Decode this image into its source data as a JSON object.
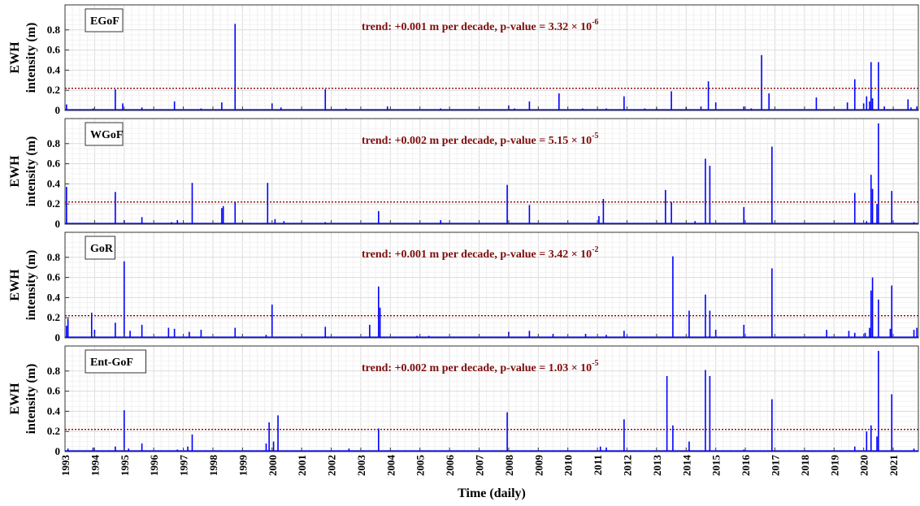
{
  "figure": {
    "xlabel": "Time (daily)",
    "ylabel_line1": "EWH",
    "ylabel_line2": "intensity (m)",
    "x_ticks": [
      "1993",
      "1994",
      "1995",
      "1996",
      "1997",
      "1998",
      "1999",
      "2000",
      "2001",
      "2002",
      "2003",
      "2004",
      "2005",
      "2006",
      "2007",
      "2008",
      "2009",
      "2010",
      "2011",
      "2012",
      "2013",
      "2014",
      "2015",
      "2016",
      "2017",
      "2018",
      "2019",
      "2020",
      "2021"
    ],
    "y_ticks": [
      "0",
      "0.2",
      "0.4",
      "0.6",
      "0.8"
    ]
  },
  "colors": {
    "series": "#0000ff",
    "threshold": "#8b0000",
    "trend_text": "#7f0c0c",
    "grid": "#e3e3e3"
  },
  "chart_data": [
    {
      "type": "line",
      "title": "EGoF",
      "trend_text": "trend: +0.001 m per decade, p-value = 3.32 × 10",
      "trend_exp": "-6",
      "xlim": [
        1993.0,
        2021.85
      ],
      "ylim": [
        0,
        1.0
      ],
      "threshold": 0.22,
      "spikes": [
        [
          1993.05,
          0.06
        ],
        [
          1993.95,
          0.02
        ],
        [
          1994.7,
          0.21
        ],
        [
          1994.95,
          0.07
        ],
        [
          1995.6,
          0.03
        ],
        [
          1996.7,
          0.09
        ],
        [
          1997.6,
          0.02
        ],
        [
          1998.3,
          0.08
        ],
        [
          1998.75,
          0.86
        ],
        [
          2000.0,
          0.07
        ],
        [
          2000.3,
          0.03
        ],
        [
          2001.8,
          0.21
        ],
        [
          2002.5,
          0.02
        ],
        [
          2003.9,
          0.04
        ],
        [
          2005.7,
          0.02
        ],
        [
          2008.0,
          0.05
        ],
        [
          2008.2,
          0.02
        ],
        [
          2008.7,
          0.09
        ],
        [
          2009.7,
          0.17
        ],
        [
          2010.5,
          0.02
        ],
        [
          2011.3,
          0.02
        ],
        [
          2011.9,
          0.14
        ],
        [
          2012.6,
          0.02
        ],
        [
          2013.0,
          0.02
        ],
        [
          2013.5,
          0.19
        ],
        [
          2014.0,
          0.03
        ],
        [
          2014.5,
          0.04
        ],
        [
          2014.75,
          0.29
        ],
        [
          2015.0,
          0.08
        ],
        [
          2015.95,
          0.04
        ],
        [
          2016.2,
          0.02
        ],
        [
          2016.55,
          0.55
        ],
        [
          2016.8,
          0.17
        ],
        [
          2018.4,
          0.13
        ],
        [
          2019.45,
          0.08
        ],
        [
          2019.7,
          0.31
        ],
        [
          2020.0,
          0.07
        ],
        [
          2020.1,
          0.14
        ],
        [
          2020.2,
          0.09
        ],
        [
          2020.25,
          0.48
        ],
        [
          2020.3,
          0.12
        ],
        [
          2020.5,
          0.48
        ],
        [
          2020.7,
          0.04
        ],
        [
          2021.5,
          0.11
        ],
        [
          2021.6,
          0.03
        ],
        [
          2021.8,
          0.04
        ]
      ]
    },
    {
      "type": "line",
      "title": "WGoF",
      "trend_text": "trend: +0.002 m per decade, p-value = 5.15 × 10",
      "trend_exp": "-5",
      "xlim": [
        1993.0,
        2021.85
      ],
      "ylim": [
        0,
        1.0
      ],
      "threshold": 0.22,
      "spikes": [
        [
          1993.05,
          0.37
        ],
        [
          1994.7,
          0.32
        ],
        [
          1995.0,
          0.04
        ],
        [
          1995.6,
          0.07
        ],
        [
          1996.6,
          0.02
        ],
        [
          1996.8,
          0.04
        ],
        [
          1997.3,
          0.41
        ],
        [
          1998.3,
          0.16
        ],
        [
          1998.35,
          0.18
        ],
        [
          1998.75,
          0.22
        ],
        [
          1999.85,
          0.41
        ],
        [
          2000.1,
          0.05
        ],
        [
          2000.4,
          0.03
        ],
        [
          2001.8,
          0.02
        ],
        [
          2003.6,
          0.13
        ],
        [
          2005.7,
          0.04
        ],
        [
          2007.95,
          0.39
        ],
        [
          2008.7,
          0.19
        ],
        [
          2011.05,
          0.08
        ],
        [
          2011.2,
          0.25
        ],
        [
          2013.3,
          0.34
        ],
        [
          2013.5,
          0.22
        ],
        [
          2014.3,
          0.03
        ],
        [
          2014.65,
          0.65
        ],
        [
          2014.8,
          0.58
        ],
        [
          2015.95,
          0.17
        ],
        [
          2016.9,
          0.77
        ],
        [
          2019.7,
          0.31
        ],
        [
          2020.1,
          0.03
        ],
        [
          2020.25,
          0.49
        ],
        [
          2020.3,
          0.35
        ],
        [
          2020.45,
          0.2
        ],
        [
          2020.5,
          1.0
        ],
        [
          2020.95,
          0.33
        ],
        [
          2021.7,
          0.02
        ]
      ]
    },
    {
      "type": "line",
      "title": "GoR",
      "trend_text": "trend: +0.001 m per decade, p-value = 3.42 × 10",
      "trend_exp": "-2",
      "xlim": [
        1993.0,
        2021.85
      ],
      "ylim": [
        0,
        1.0
      ],
      "threshold": 0.22,
      "spikes": [
        [
          1993.05,
          0.12
        ],
        [
          1993.1,
          0.19
        ],
        [
          1993.9,
          0.25
        ],
        [
          1994.0,
          0.08
        ],
        [
          1994.7,
          0.15
        ],
        [
          1995.0,
          0.76
        ],
        [
          1995.2,
          0.07
        ],
        [
          1995.6,
          0.13
        ],
        [
          1996.5,
          0.1
        ],
        [
          1996.7,
          0.09
        ],
        [
          1997.2,
          0.06
        ],
        [
          1997.6,
          0.08
        ],
        [
          1998.75,
          0.1
        ],
        [
          1999.8,
          0.03
        ],
        [
          2000.0,
          0.33
        ],
        [
          2001.8,
          0.11
        ],
        [
          2003.3,
          0.13
        ],
        [
          2003.6,
          0.51
        ],
        [
          2003.65,
          0.3
        ],
        [
          2004.9,
          0.02
        ],
        [
          2005.3,
          0.02
        ],
        [
          2008.0,
          0.06
        ],
        [
          2008.7,
          0.07
        ],
        [
          2009.5,
          0.04
        ],
        [
          2010.6,
          0.04
        ],
        [
          2011.3,
          0.03
        ],
        [
          2011.9,
          0.07
        ],
        [
          2013.55,
          0.81
        ],
        [
          2014.1,
          0.27
        ],
        [
          2014.65,
          0.43
        ],
        [
          2014.8,
          0.27
        ],
        [
          2015.0,
          0.08
        ],
        [
          2015.95,
          0.13
        ],
        [
          2016.9,
          0.69
        ],
        [
          2018.75,
          0.08
        ],
        [
          2019.5,
          0.07
        ],
        [
          2019.7,
          0.05
        ],
        [
          2020.05,
          0.05
        ],
        [
          2020.2,
          0.1
        ],
        [
          2020.25,
          0.47
        ],
        [
          2020.3,
          0.6
        ],
        [
          2020.5,
          0.38
        ],
        [
          2020.9,
          0.09
        ],
        [
          2020.95,
          0.52
        ],
        [
          2021.7,
          0.08
        ],
        [
          2021.8,
          0.1
        ]
      ]
    },
    {
      "type": "line",
      "title": "Ent-GoF",
      "trend_text": "trend: +0.002 m per decade, p-value = 1.03 × 10",
      "trend_exp": "-5",
      "xlim": [
        1993.0,
        2021.85
      ],
      "ylim": [
        0,
        1.0
      ],
      "threshold": 0.22,
      "spikes": [
        [
          1993.1,
          0.03
        ],
        [
          1993.95,
          0.04
        ],
        [
          1994.7,
          0.05
        ],
        [
          1995.0,
          0.41
        ],
        [
          1995.15,
          0.03
        ],
        [
          1995.6,
          0.08
        ],
        [
          1996.8,
          0.02
        ],
        [
          1997.15,
          0.05
        ],
        [
          1997.3,
          0.17
        ],
        [
          1999.8,
          0.08
        ],
        [
          1999.9,
          0.29
        ],
        [
          2000.05,
          0.1
        ],
        [
          2000.2,
          0.36
        ],
        [
          2002.6,
          0.03
        ],
        [
          2003.6,
          0.23
        ],
        [
          2007.95,
          0.39
        ],
        [
          2011.1,
          0.05
        ],
        [
          2011.3,
          0.04
        ],
        [
          2011.9,
          0.32
        ],
        [
          2013.35,
          0.75
        ],
        [
          2013.55,
          0.26
        ],
        [
          2014.1,
          0.1
        ],
        [
          2014.65,
          0.81
        ],
        [
          2014.8,
          0.75
        ],
        [
          2015.95,
          0.02
        ],
        [
          2016.9,
          0.52
        ],
        [
          2019.7,
          0.05
        ],
        [
          2020.1,
          0.2
        ],
        [
          2020.25,
          0.26
        ],
        [
          2020.45,
          0.15
        ],
        [
          2020.5,
          1.0
        ],
        [
          2020.95,
          0.57
        ],
        [
          2021.7,
          0.03
        ]
      ]
    }
  ]
}
